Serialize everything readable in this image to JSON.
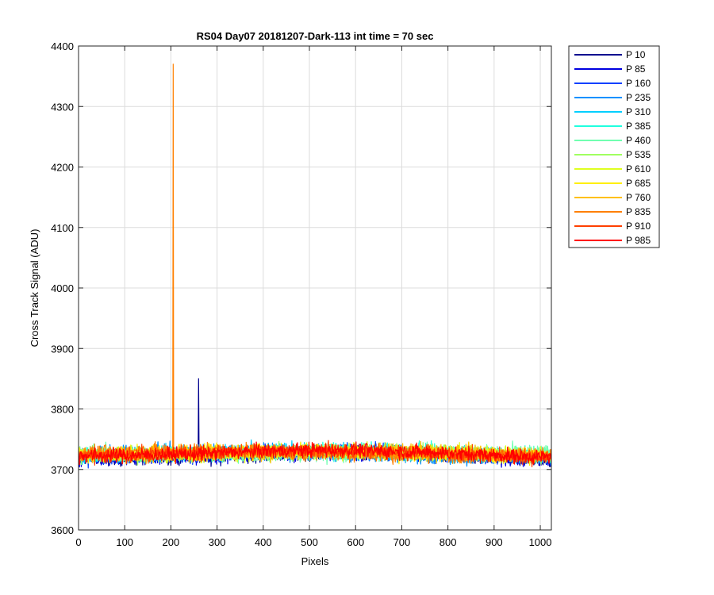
{
  "chart_data": {
    "type": "line",
    "title": "RS04 Day07 20181207-Dark-113 int time = 70 sec",
    "xlabel": "Pixels",
    "ylabel": "Cross Track Signal (ADU)",
    "xlim": [
      0,
      1024
    ],
    "ylim": [
      3600,
      4400
    ],
    "xticks": [
      0,
      100,
      200,
      300,
      400,
      500,
      600,
      700,
      800,
      900,
      1000
    ],
    "yticks": [
      3600,
      3700,
      3800,
      3900,
      4000,
      4100,
      4200,
      4300,
      4400
    ],
    "grid": true,
    "legend_position": "outside-top-right",
    "series": [
      {
        "name": "P 10",
        "color": "#00008F",
        "baseline": 3718,
        "spikes": [
          [
            260,
            3850
          ]
        ]
      },
      {
        "name": "P 85",
        "color": "#0000E0",
        "baseline": 3718
      },
      {
        "name": "P 160",
        "color": "#0040FF",
        "baseline": 3720
      },
      {
        "name": "P 235",
        "color": "#0090FF",
        "baseline": 3720
      },
      {
        "name": "P 310",
        "color": "#00CFFF",
        "baseline": 3722
      },
      {
        "name": "P 385",
        "color": "#20FFDF",
        "baseline": 3722
      },
      {
        "name": "P 460",
        "color": "#70FFB0",
        "baseline": 3722
      },
      {
        "name": "P 535",
        "color": "#A0FF60",
        "baseline": 3722
      },
      {
        "name": "P 610",
        "color": "#DFFF20",
        "baseline": 3722
      },
      {
        "name": "P 685",
        "color": "#FFEF00",
        "baseline": 3722
      },
      {
        "name": "P 760",
        "color": "#FFC000",
        "baseline": 3722
      },
      {
        "name": "P 835",
        "color": "#FF8000",
        "baseline": 3722,
        "spikes": [
          [
            205,
            4370
          ]
        ]
      },
      {
        "name": "P 910",
        "color": "#FF4000",
        "baseline": 3722
      },
      {
        "name": "P 985",
        "color": "#FF0000",
        "baseline": 3722
      }
    ]
  }
}
